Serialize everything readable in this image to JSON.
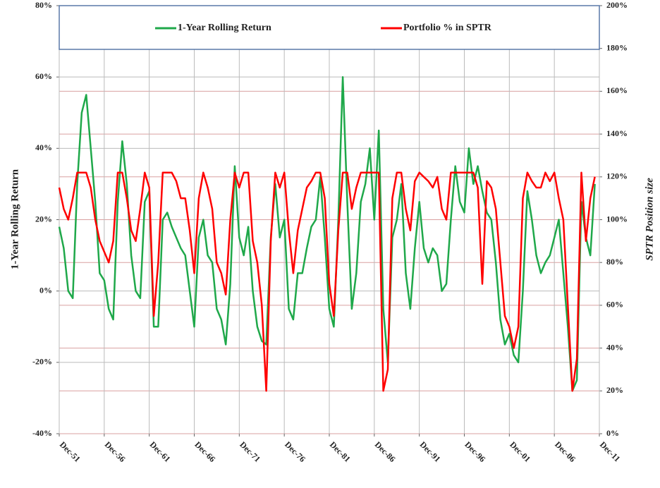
{
  "chart_data": {
    "type": "line",
    "y_label": "1-Year Rolling Return",
    "y2_label": "SPTR Position size",
    "categories": [
      "Dec-51",
      null,
      null,
      null,
      null,
      null,
      null,
      null,
      null,
      null,
      "Dec-56",
      null,
      null,
      null,
      null,
      null,
      null,
      null,
      null,
      null,
      "Dec-61",
      null,
      null,
      null,
      null,
      null,
      null,
      null,
      null,
      null,
      "Dec-66",
      null,
      null,
      null,
      null,
      null,
      null,
      null,
      null,
      null,
      "Dec-71",
      null,
      null,
      null,
      null,
      null,
      null,
      null,
      null,
      null,
      "Dec-76",
      null,
      null,
      null,
      null,
      null,
      null,
      null,
      null,
      null,
      "Dec-81",
      null,
      null,
      null,
      null,
      null,
      null,
      null,
      null,
      null,
      "Dec-86",
      null,
      null,
      null,
      null,
      null,
      null,
      null,
      null,
      null,
      "Dec-91",
      null,
      null,
      null,
      null,
      null,
      null,
      null,
      null,
      null,
      "Dec-96",
      null,
      null,
      null,
      null,
      null,
      null,
      null,
      null,
      null,
      "Dec-01",
      null,
      null,
      null,
      null,
      null,
      null,
      null,
      null,
      null,
      "Dec-06",
      null,
      null,
      null,
      null,
      null,
      null,
      null,
      null,
      null,
      "Dec-11"
    ],
    "series": [
      {
        "name": "1-Year Rolling Return",
        "color": "#1fa84a",
        "axis": "y",
        "values": [
          18,
          12,
          0,
          -2,
          30,
          50,
          55,
          40,
          25,
          5,
          3,
          -5,
          -8,
          25,
          42,
          30,
          10,
          0,
          -2,
          25,
          28,
          -10,
          -10,
          20,
          22,
          18,
          15,
          12,
          10,
          0,
          -10,
          15,
          20,
          10,
          8,
          -5,
          -8,
          -15,
          2,
          35,
          15,
          10,
          18,
          0,
          -10,
          -14,
          -15,
          15,
          30,
          15,
          20,
          -5,
          -8,
          5,
          5,
          12,
          18,
          20,
          32,
          15,
          -5,
          -10,
          20,
          60,
          25,
          -5,
          5,
          25,
          30,
          40,
          20,
          45,
          -5,
          -20,
          15,
          20,
          30,
          5,
          -5,
          12,
          25,
          12,
          8,
          12,
          10,
          0,
          2,
          20,
          35,
          25,
          22,
          40,
          30,
          35,
          28,
          22,
          20,
          8,
          -8,
          -15,
          -12,
          -18,
          -20,
          0,
          28,
          20,
          10,
          5,
          8,
          10,
          15,
          20,
          5,
          -10,
          -28,
          -25,
          25,
          15,
          10,
          30,
          null
        ]
      },
      {
        "name": "Portfolio % in SPTR",
        "color": "#ff0000",
        "axis": "y2",
        "values": [
          115,
          105,
          100,
          110,
          122,
          122,
          122,
          115,
          100,
          90,
          85,
          80,
          90,
          122,
          122,
          110,
          95,
          90,
          105,
          122,
          115,
          55,
          80,
          122,
          122,
          122,
          118,
          110,
          110,
          95,
          75,
          110,
          122,
          115,
          105,
          80,
          75,
          65,
          100,
          122,
          115,
          122,
          122,
          90,
          80,
          60,
          20,
          90,
          122,
          115,
          122,
          95,
          75,
          95,
          105,
          115,
          118,
          122,
          122,
          110,
          70,
          55,
          95,
          122,
          122,
          105,
          115,
          122,
          122,
          122,
          122,
          122,
          20,
          30,
          110,
          122,
          122,
          105,
          95,
          118,
          122,
          120,
          118,
          115,
          120,
          105,
          100,
          122,
          122,
          122,
          122,
          122,
          122,
          115,
          70,
          118,
          115,
          105,
          80,
          55,
          50,
          40,
          50,
          110,
          122,
          118,
          115,
          115,
          122,
          118,
          122,
          110,
          100,
          60,
          20,
          35,
          122,
          90,
          110,
          120,
          null
        ]
      }
    ],
    "ylim": [
      -40,
      80
    ],
    "yticks": [
      {
        "value": -40,
        "label": "-40%"
      },
      {
        "value": -20,
        "label": "-20%"
      },
      {
        "value": 0,
        "label": "0%"
      },
      {
        "value": 20,
        "label": "20%"
      },
      {
        "value": 40,
        "label": "40%"
      },
      {
        "value": 60,
        "label": "60%"
      },
      {
        "value": 80,
        "label": "80%"
      }
    ],
    "y2lim": [
      0,
      200
    ],
    "y2ticks": [
      {
        "value": 0,
        "label": "0%"
      },
      {
        "value": 20,
        "label": "20%"
      },
      {
        "value": 40,
        "label": "40%"
      },
      {
        "value": 60,
        "label": "60%"
      },
      {
        "value": 80,
        "label": "80%"
      },
      {
        "value": 100,
        "label": "100%"
      },
      {
        "value": 120,
        "label": "120%"
      },
      {
        "value": 140,
        "label": "140%"
      },
      {
        "value": 160,
        "label": "160%"
      },
      {
        "value": 180,
        "label": "180%"
      },
      {
        "value": 200,
        "label": "200%"
      }
    ],
    "grid": true,
    "legend": "top"
  }
}
